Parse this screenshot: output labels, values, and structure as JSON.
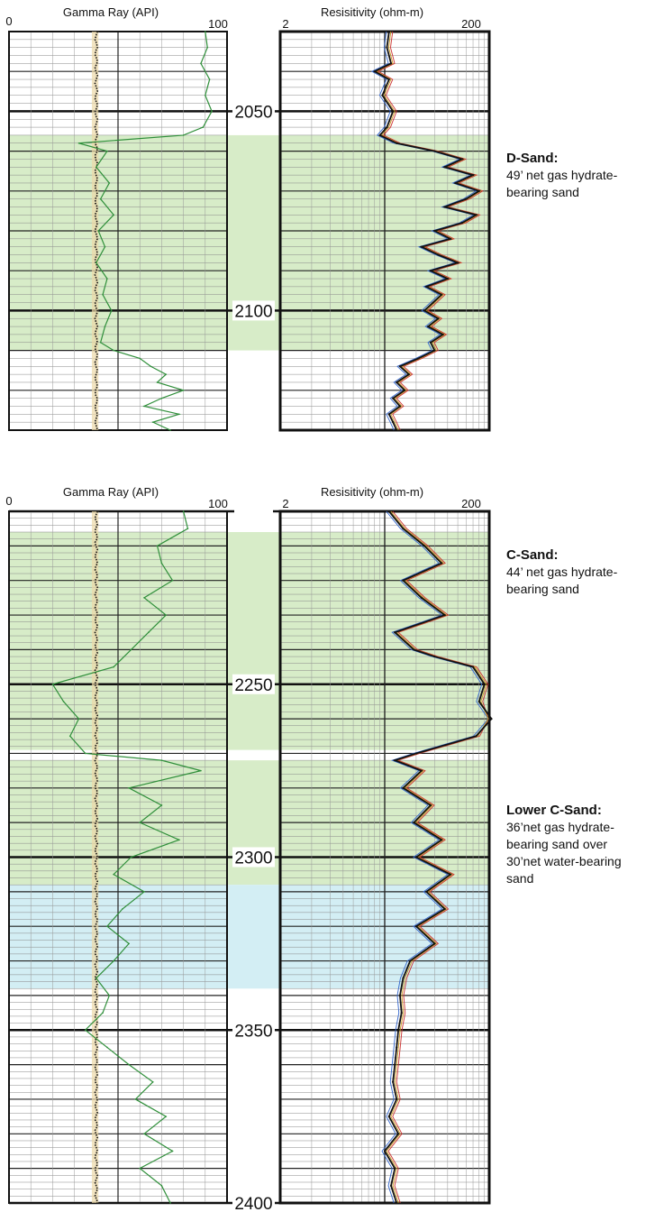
{
  "chart_data": [
    {
      "type": "line",
      "panel": "upper",
      "depth_range": [
        2030,
        2130
      ],
      "depth_labels": [
        2050,
        2100
      ],
      "gamma_ray": {
        "title": "Gamma Ray (API)",
        "range": [
          0,
          100
        ],
        "tick_labels": [
          "0",
          "100"
        ],
        "depth": [
          2030,
          2034,
          2038,
          2042,
          2046,
          2050,
          2054,
          2056,
          2058,
          2060,
          2064,
          2068,
          2072,
          2076,
          2080,
          2084,
          2088,
          2092,
          2096,
          2100,
          2104,
          2108,
          2110,
          2112,
          2114,
          2116,
          2118,
          2120,
          2122,
          2124,
          2126,
          2128,
          2130
        ],
        "values": [
          90,
          91,
          88,
          92,
          90,
          93,
          89,
          80,
          32,
          45,
          40,
          46,
          42,
          48,
          41,
          44,
          40,
          45,
          43,
          47,
          44,
          42,
          48,
          60,
          65,
          72,
          68,
          80,
          70,
          62,
          78,
          66,
          74
        ]
      },
      "resistivity": {
        "title": "Resisitivity (ohm-m)",
        "scale": "log",
        "range": [
          2,
          200
        ],
        "tick_labels": [
          "2",
          "200"
        ],
        "depth": [
          2030,
          2034,
          2038,
          2040,
          2042,
          2046,
          2050,
          2054,
          2056,
          2058,
          2060,
          2062,
          2064,
          2066,
          2068,
          2070,
          2072,
          2074,
          2076,
          2078,
          2080,
          2082,
          2084,
          2086,
          2088,
          2090,
          2092,
          2094,
          2096,
          2098,
          2100,
          2102,
          2104,
          2106,
          2108,
          2110,
          2112,
          2114,
          2116,
          2118,
          2120,
          2122,
          2124,
          2126,
          2128,
          2130
        ],
        "values": [
          22,
          21,
          23,
          16,
          22,
          19,
          24,
          21,
          18,
          26,
          60,
          110,
          75,
          140,
          95,
          160,
          120,
          75,
          150,
          110,
          60,
          85,
          45,
          65,
          100,
          55,
          80,
          50,
          70,
          58,
          48,
          65,
          52,
          72,
          55,
          60,
          42,
          28,
          34,
          26,
          31,
          24,
          28,
          22,
          24,
          26
        ]
      },
      "zones": [
        {
          "name": "D-Sand:",
          "top": 2056,
          "bottom": 2110,
          "color": "#d7ecc8",
          "description": [
            "49’ net gas hydrate-",
            "bearing sand"
          ]
        }
      ]
    },
    {
      "type": "line",
      "panel": "lower",
      "depth_range": [
        2200,
        2400
      ],
      "depth_labels": [
        2250,
        2300,
        2350,
        2400
      ],
      "gamma_ray": {
        "title": "Gamma Ray (API)",
        "range": [
          0,
          100
        ],
        "tick_labels": [
          "0",
          "100"
        ],
        "depth": [
          2200,
          2205,
          2210,
          2215,
          2220,
          2225,
          2230,
          2235,
          2240,
          2245,
          2250,
          2255,
          2260,
          2265,
          2270,
          2272,
          2275,
          2280,
          2285,
          2290,
          2295,
          2300,
          2305,
          2310,
          2315,
          2320,
          2325,
          2330,
          2335,
          2340,
          2345,
          2350,
          2355,
          2360,
          2365,
          2370,
          2375,
          2380,
          2385,
          2390,
          2395,
          2400
        ],
        "values": [
          80,
          82,
          68,
          70,
          75,
          62,
          72,
          64,
          56,
          48,
          20,
          25,
          32,
          28,
          35,
          70,
          88,
          55,
          70,
          60,
          78,
          56,
          48,
          62,
          52,
          45,
          55,
          48,
          40,
          46,
          43,
          35,
          45,
          55,
          66,
          58,
          72,
          62,
          75,
          60,
          70,
          74
        ]
      },
      "resistivity": {
        "title": "Resisitivity (ohm-m)",
        "scale": "log",
        "range": [
          2,
          200
        ],
        "tick_labels": [
          "2",
          "200"
        ],
        "depth": [
          2200,
          2205,
          2210,
          2215,
          2220,
          2225,
          2230,
          2235,
          2240,
          2242,
          2245,
          2250,
          2255,
          2260,
          2265,
          2270,
          2272,
          2275,
          2280,
          2285,
          2290,
          2295,
          2300,
          2305,
          2310,
          2315,
          2320,
          2325,
          2330,
          2335,
          2340,
          2345,
          2350,
          2355,
          2360,
          2365,
          2370,
          2375,
          2380,
          2385,
          2390,
          2395,
          2400
        ],
        "values": [
          22,
          30,
          48,
          70,
          30,
          45,
          75,
          25,
          38,
          60,
          140,
          180,
          160,
          210,
          150,
          40,
          25,
          45,
          30,
          55,
          38,
          70,
          40,
          85,
          50,
          75,
          40,
          60,
          35,
          30,
          28,
          29,
          27,
          26,
          25,
          24,
          26,
          22,
          27,
          20,
          25,
          23,
          26
        ]
      },
      "zones": [
        {
          "name": "C-Sand:",
          "top": 2206,
          "bottom": 2269,
          "color": "#d7ecc8",
          "description": [
            "44’ net gas hydrate-",
            "bearing sand"
          ]
        },
        {
          "name": "Lower C-Sand:",
          "top": 2272,
          "bottom": 2308,
          "color": "#d7ecc8",
          "description": [
            "36’net gas hydrate-",
            "bearing sand over",
            "30’net water-bearing",
            "sand"
          ]
        },
        {
          "name": "",
          "top": 2308,
          "bottom": 2338,
          "color": "#d3eef4",
          "description": []
        }
      ]
    }
  ]
}
